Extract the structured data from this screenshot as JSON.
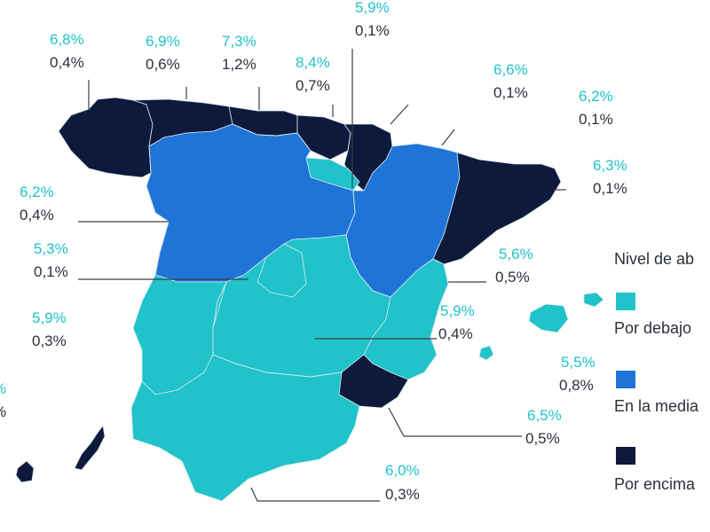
{
  "colors": {
    "below": "#1fc3c9",
    "average": "#1f74d8",
    "above": "#0e1a3c",
    "percent_text": "#1fc3c9",
    "value_text": "#2a2f3a"
  },
  "legend": {
    "title": "Nivel de ab",
    "items": [
      {
        "key": "below",
        "label": "Por debajo"
      },
      {
        "key": "average",
        "label": "En la media"
      },
      {
        "key": "above",
        "label": "Por encima"
      }
    ]
  },
  "regions": [
    {
      "key": "galicia",
      "level": "above",
      "pct": "6,8%",
      "val": "0,4%"
    },
    {
      "key": "asturias",
      "level": "above",
      "pct": "6,9%",
      "val": "0,6%"
    },
    {
      "key": "cantabria",
      "level": "above",
      "pct": "7,3%",
      "val": "1,2%"
    },
    {
      "key": "pais-vasco",
      "level": "above",
      "pct": "8,4%",
      "val": "0,7%"
    },
    {
      "key": "navarra",
      "level": "above",
      "pct": "5,9%",
      "val": "0,1%"
    },
    {
      "key": "la-rioja",
      "level": "below",
      "pct": "6,6%",
      "val": "0,1%"
    },
    {
      "key": "aragon",
      "level": "average",
      "pct": "6,2%",
      "val": "0,1%"
    },
    {
      "key": "cataluna",
      "level": "above",
      "pct": "6,3%",
      "val": "0,1%"
    },
    {
      "key": "castilla-leon",
      "level": "average",
      "pct": "6,2%",
      "val": "0,4%"
    },
    {
      "key": "madrid",
      "level": "below",
      "pct": "5,3%",
      "val": "0,1%"
    },
    {
      "key": "comunidad-valenciana",
      "level": "below",
      "pct": "5,6%",
      "val": "0,5%"
    },
    {
      "key": "castilla-la-mancha",
      "level": "below",
      "pct": "5,9%",
      "val": "0,4%"
    },
    {
      "key": "extremadura",
      "level": "below",
      "pct": "5,9%",
      "val": "0,3%"
    },
    {
      "key": "baleares",
      "level": "below",
      "pct": "5,5%",
      "val": "0,8%"
    },
    {
      "key": "murcia",
      "level": "above",
      "pct": "6,5%",
      "val": "0,5%"
    },
    {
      "key": "andalucia",
      "level": "below",
      "pct": "6,0%",
      "val": "0,3%"
    },
    {
      "key": "canarias",
      "level": "above",
      "pct": "%",
      "val": "%"
    }
  ]
}
